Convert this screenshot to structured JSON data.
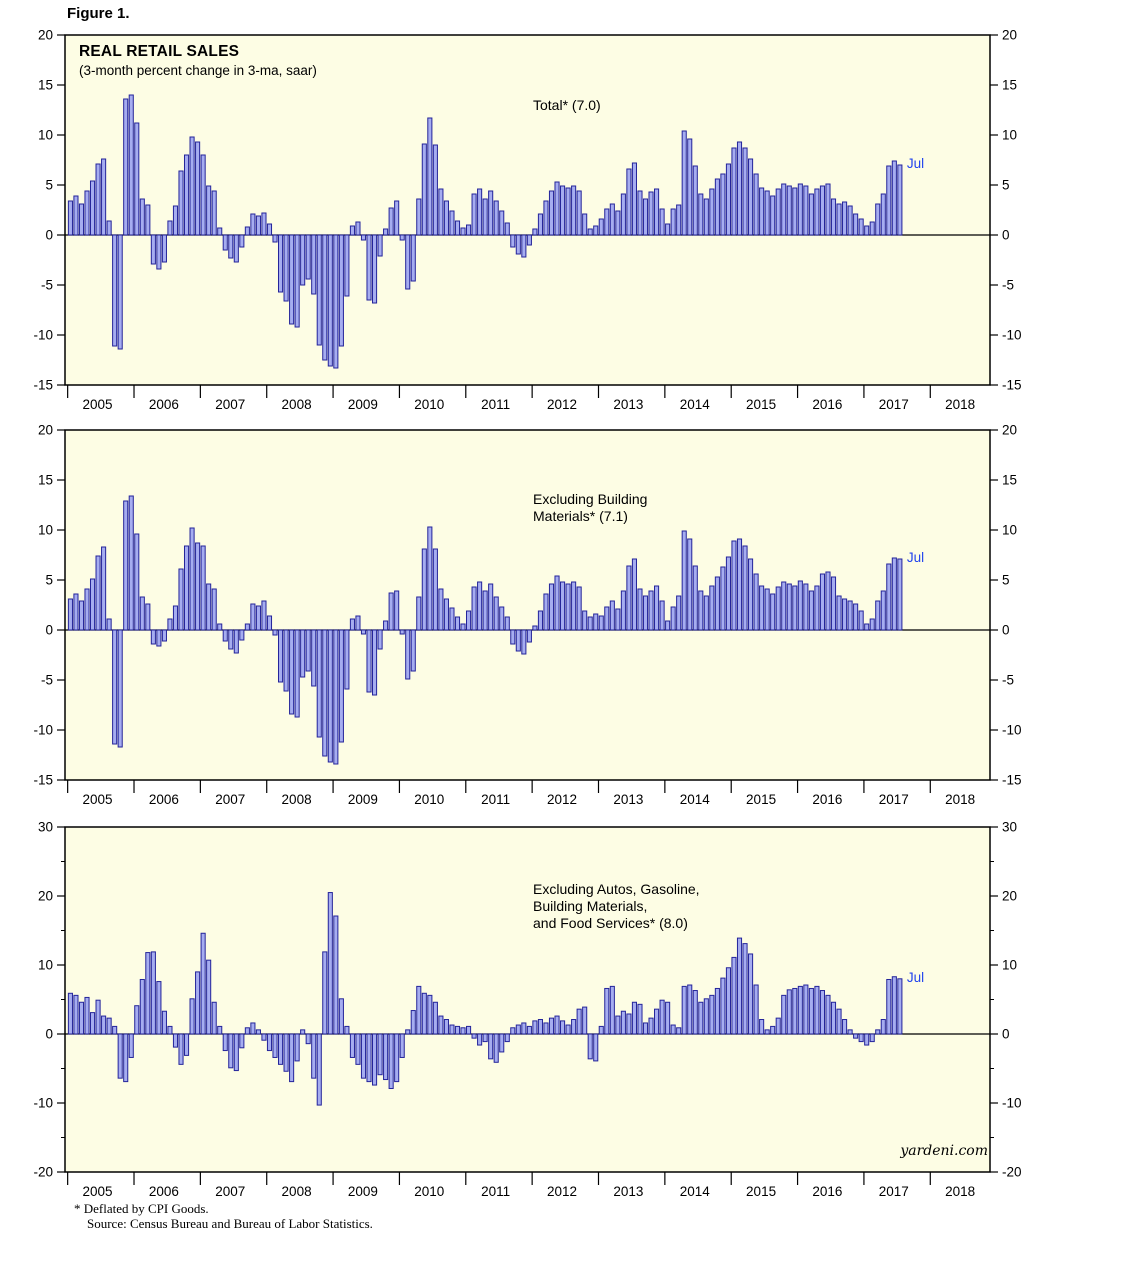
{
  "figure_label": "Figure 1.",
  "header": {
    "title": "REAL RETAIL SALES",
    "subtitle": "(3-month percent change in 3-ma, saar)"
  },
  "watermark": "yardeni.com",
  "footnotes": {
    "line1": "* Deflated by CPI Goods.",
    "line2": "Source: Census Bureau and Bureau of Labor Statistics."
  },
  "colors": {
    "plot_bg": "#fdfde4",
    "axis": "#000000",
    "bar_fill": "#a6adf0",
    "bar_stroke": "#24249a",
    "jul": "#2244ee",
    "text": "#000000"
  },
  "x_axis": {
    "years": [
      2005,
      2006,
      2007,
      2008,
      2009,
      2010,
      2011,
      2012,
      2013,
      2014,
      2015,
      2016,
      2017,
      2018
    ]
  },
  "chart_data": [
    {
      "type": "bar",
      "series_name": "Total",
      "title_lines": [
        "Total* (7.0)"
      ],
      "latest_value": 7.0,
      "last_point_label": "Jul",
      "ylim": [
        -15,
        20
      ],
      "yticks": [
        20,
        15,
        10,
        5,
        0,
        -5,
        -10,
        -15
      ],
      "start": {
        "year": 2005,
        "month": 1
      },
      "frequency": "monthly",
      "values": [
        3.4,
        3.9,
        3.1,
        4.4,
        5.4,
        7.1,
        7.6,
        1.4,
        -11.1,
        -11.4,
        13.6,
        14.0,
        11.2,
        3.6,
        3.0,
        -2.9,
        -3.4,
        -2.7,
        1.4,
        2.9,
        6.4,
        8.0,
        9.8,
        9.3,
        8.0,
        4.9,
        4.4,
        0.7,
        -1.5,
        -2.3,
        -2.7,
        -1.2,
        0.8,
        2.1,
        1.9,
        2.2,
        1.1,
        -0.7,
        -5.7,
        -6.6,
        -8.9,
        -9.2,
        -5.0,
        -4.4,
        -5.9,
        -11.0,
        -12.5,
        -13.1,
        -13.3,
        -11.1,
        -6.1,
        0.9,
        1.3,
        -0.5,
        -6.5,
        -6.8,
        -2.1,
        0.6,
        2.7,
        3.4,
        -0.5,
        -5.4,
        -4.6,
        3.6,
        9.1,
        11.7,
        9.0,
        4.6,
        3.4,
        2.4,
        1.4,
        0.7,
        1.0,
        4.1,
        4.6,
        3.6,
        4.4,
        3.4,
        2.4,
        1.2,
        -1.2,
        -1.9,
        -2.2,
        -1.0,
        0.6,
        2.1,
        3.4,
        4.4,
        5.3,
        4.9,
        4.7,
        4.9,
        4.4,
        2.1,
        0.6,
        0.9,
        1.6,
        2.6,
        3.1,
        2.4,
        4.1,
        6.6,
        7.2,
        4.4,
        3.6,
        4.3,
        4.6,
        2.6,
        1.1,
        2.6,
        3.0,
        10.4,
        9.6,
        6.9,
        4.1,
        3.6,
        4.6,
        5.6,
        6.1,
        7.1,
        8.7,
        9.3,
        8.7,
        7.6,
        6.1,
        4.7,
        4.4,
        3.9,
        4.6,
        5.1,
        4.9,
        4.7,
        5.1,
        4.9,
        4.1,
        4.6,
        4.9,
        5.1,
        3.6,
        3.1,
        3.3,
        2.9,
        2.1,
        1.6,
        0.9,
        1.3,
        3.1,
        4.1,
        6.9,
        7.4,
        7.0
      ]
    },
    {
      "type": "bar",
      "series_name": "Excluding Building Materials",
      "title_lines": [
        "Excluding Building",
        "Materials* (7.1)"
      ],
      "latest_value": 7.1,
      "last_point_label": "Jul",
      "ylim": [
        -15,
        20
      ],
      "yticks": [
        20,
        15,
        10,
        5,
        0,
        -5,
        -10,
        -15
      ],
      "start": {
        "year": 2005,
        "month": 1
      },
      "frequency": "monthly",
      "values": [
        3.1,
        3.6,
        2.9,
        4.1,
        5.1,
        7.4,
        8.3,
        1.1,
        -11.4,
        -11.7,
        12.9,
        13.4,
        9.6,
        3.3,
        2.6,
        -1.4,
        -1.6,
        -1.1,
        1.1,
        2.4,
        6.1,
        8.4,
        10.2,
        8.7,
        8.4,
        4.6,
        4.1,
        0.6,
        -1.1,
        -1.9,
        -2.3,
        -1.0,
        0.6,
        2.6,
        2.4,
        2.9,
        1.4,
        -0.5,
        -5.2,
        -6.1,
        -8.4,
        -8.7,
        -4.7,
        -4.1,
        -5.6,
        -10.7,
        -12.6,
        -13.2,
        -13.4,
        -11.2,
        -5.9,
        1.1,
        1.4,
        -0.4,
        -6.2,
        -6.5,
        -1.9,
        0.9,
        3.7,
        3.9,
        -0.4,
        -4.9,
        -4.1,
        3.3,
        8.1,
        10.3,
        8.1,
        4.1,
        3.1,
        2.2,
        1.3,
        0.6,
        1.9,
        4.3,
        4.8,
        3.9,
        4.6,
        3.3,
        2.3,
        1.3,
        -1.4,
        -2.1,
        -2.4,
        -1.2,
        0.4,
        1.9,
        3.6,
        4.6,
        5.4,
        4.8,
        4.6,
        4.8,
        4.3,
        1.9,
        1.3,
        1.6,
        1.4,
        2.3,
        2.9,
        2.1,
        3.9,
        6.4,
        7.1,
        4.1,
        3.4,
        3.9,
        4.4,
        2.9,
        0.9,
        2.3,
        3.4,
        9.9,
        9.1,
        6.4,
        3.9,
        3.4,
        4.4,
        5.3,
        6.3,
        7.3,
        8.9,
        9.1,
        8.4,
        7.1,
        5.6,
        4.4,
        4.1,
        3.6,
        4.3,
        4.8,
        4.6,
        4.4,
        4.9,
        4.6,
        3.9,
        4.4,
        5.6,
        5.8,
        5.3,
        3.4,
        3.1,
        2.9,
        2.6,
        1.9,
        0.6,
        1.1,
        2.9,
        3.9,
        6.6,
        7.2,
        7.1
      ]
    },
    {
      "type": "bar",
      "series_name": "Excluding Autos, Gasoline, Building Materials, and Food Services",
      "title_lines": [
        "Excluding Autos, Gasoline,",
        "Building Materials,",
        "and Food Services* (8.0)"
      ],
      "latest_value": 8.0,
      "last_point_label": "Jul",
      "ylim": [
        -20,
        30
      ],
      "yticks": [
        30,
        20,
        10,
        0,
        -10,
        -20
      ],
      "yticks_minor": [
        25,
        15,
        5,
        -5,
        -15
      ],
      "start": {
        "year": 2005,
        "month": 1
      },
      "frequency": "monthly",
      "values": [
        5.9,
        5.6,
        4.6,
        5.3,
        3.1,
        4.9,
        2.6,
        2.3,
        1.1,
        -6.4,
        -6.9,
        -3.4,
        4.1,
        7.9,
        11.8,
        11.9,
        7.6,
        3.3,
        1.1,
        -1.9,
        -4.4,
        -3.1,
        5.1,
        9.0,
        14.6,
        10.7,
        4.6,
        1.1,
        -2.4,
        -4.9,
        -5.3,
        -2.0,
        0.9,
        1.6,
        0.6,
        -0.9,
        -2.4,
        -3.4,
        -4.4,
        -5.4,
        -6.9,
        -3.9,
        0.6,
        -1.4,
        -6.4,
        -10.3,
        11.9,
        20.5,
        17.1,
        5.1,
        1.1,
        -3.4,
        -4.4,
        -6.4,
        -6.9,
        -7.4,
        -5.9,
        -6.6,
        -7.9,
        -6.9,
        -3.4,
        0.6,
        3.4,
        6.9,
        5.9,
        5.6,
        4.6,
        2.6,
        2.1,
        1.3,
        1.1,
        0.9,
        1.1,
        -0.6,
        -1.6,
        -1.1,
        -3.6,
        -4.1,
        -2.6,
        -1.1,
        0.9,
        1.3,
        1.6,
        1.1,
        1.9,
        2.1,
        1.6,
        2.3,
        2.6,
        1.9,
        1.3,
        2.1,
        3.6,
        3.9,
        -3.6,
        -3.9,
        1.1,
        6.6,
        6.9,
        2.6,
        3.3,
        2.9,
        4.6,
        4.3,
        1.6,
        2.3,
        3.6,
        4.9,
        4.6,
        1.3,
        0.9,
        6.9,
        7.1,
        6.3,
        4.6,
        5.1,
        5.6,
        6.6,
        8.1,
        9.6,
        11.1,
        13.9,
        13.1,
        11.6,
        7.1,
        2.1,
        0.6,
        1.1,
        2.3,
        5.6,
        6.4,
        6.6,
        6.9,
        7.1,
        6.6,
        6.9,
        6.3,
        5.6,
        4.6,
        3.6,
        2.1,
        0.6,
        -0.6,
        -1.1,
        -1.6,
        -1.1,
        0.6,
        2.1,
        7.9,
        8.3,
        8.0
      ]
    }
  ]
}
